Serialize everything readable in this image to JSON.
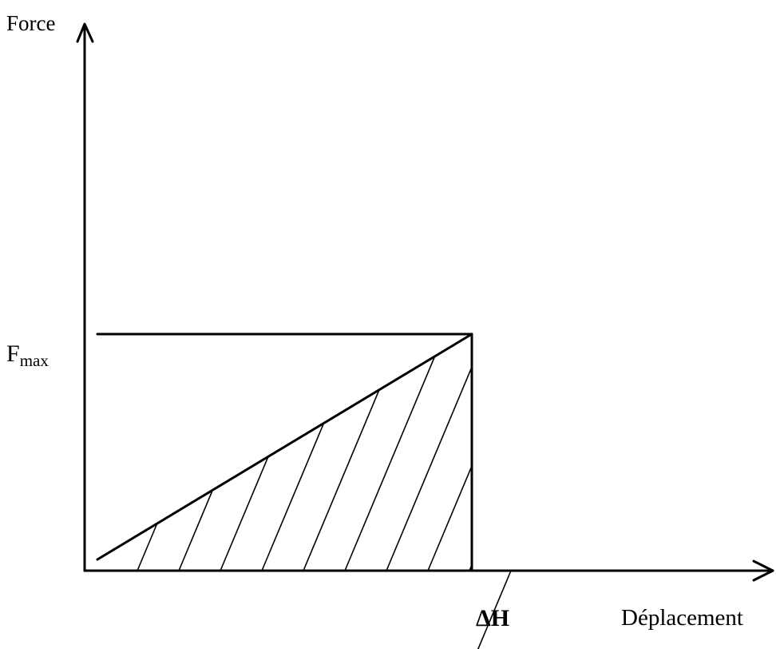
{
  "diagram": {
    "y_axis_label": "Force",
    "y_level_label": "F",
    "y_level_subscript": "max",
    "x_marker_label": "ΔH",
    "x_axis_label": "Déplacement",
    "line_color": "#000000",
    "hatch_lines": 10
  }
}
